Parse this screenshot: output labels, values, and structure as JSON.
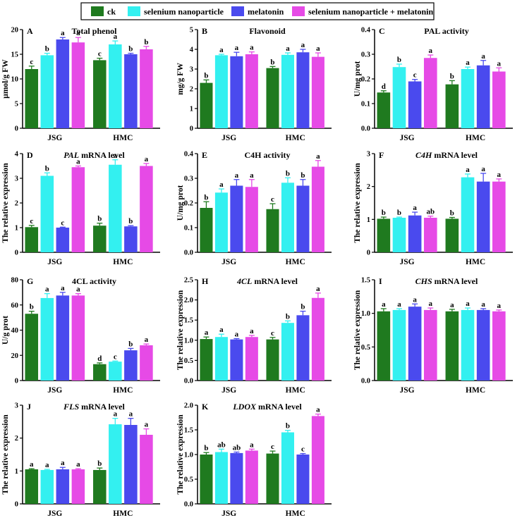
{
  "legend": {
    "items": [
      {
        "label": "ck",
        "color": "#1f7a1f"
      },
      {
        "label": "selenium nanoparticle",
        "color": "#33f0f0"
      },
      {
        "label": "melatonin",
        "color": "#4a4aee"
      },
      {
        "label": "selenium nanoparticle + melatonin",
        "color": "#e64ae6"
      }
    ]
  },
  "chart_data": [
    {
      "type": "bar",
      "letter": "A",
      "title": "Total phenol",
      "title_parts": [
        {
          "text": "Total phenol",
          "italic": false
        }
      ],
      "ylabel": "μmol/g FW",
      "ylim": [
        0,
        20
      ],
      "yticks": [
        0,
        5,
        10,
        15,
        20
      ],
      "categories": [
        "JSG",
        "HMC"
      ],
      "series": [
        {
          "name": "ck",
          "values": [
            12.0,
            13.8
          ],
          "errors": [
            0.6,
            0.4
          ],
          "letters": [
            "c",
            "c"
          ]
        },
        {
          "name": "selenium nanoparticle",
          "values": [
            14.8,
            17.0
          ],
          "errors": [
            0.4,
            0.7
          ],
          "letters": [
            "b",
            "a"
          ]
        },
        {
          "name": "melatonin",
          "values": [
            18.0,
            15.0
          ],
          "errors": [
            0.4,
            0.2
          ],
          "letters": [
            "a",
            "b"
          ]
        },
        {
          "name": "selenium nanoparticle + melatonin",
          "values": [
            17.4,
            16.0
          ],
          "errors": [
            1.0,
            0.6
          ],
          "letters": [
            "a",
            "b"
          ]
        }
      ]
    },
    {
      "type": "bar",
      "letter": "B",
      "title": "Flavonoid",
      "title_parts": [
        {
          "text": "Flavonoid",
          "italic": false
        }
      ],
      "ylabel": "mg/g FW",
      "ylim": [
        0,
        5
      ],
      "yticks": [
        0,
        1,
        2,
        3,
        4,
        5
      ],
      "categories": [
        "JSG",
        "HMC"
      ],
      "series": [
        {
          "name": "ck",
          "values": [
            2.3,
            3.05
          ],
          "errors": [
            0.15,
            0.08
          ],
          "letters": [
            "b",
            "b"
          ]
        },
        {
          "name": "selenium nanoparticle",
          "values": [
            3.7,
            3.72
          ],
          "errors": [
            0.05,
            0.1
          ],
          "letters": [
            "a",
            "a"
          ]
        },
        {
          "name": "melatonin",
          "values": [
            3.65,
            3.85
          ],
          "errors": [
            0.2,
            0.15
          ],
          "letters": [
            "a",
            "a"
          ]
        },
        {
          "name": "selenium nanoparticle + melatonin",
          "values": [
            3.75,
            3.62
          ],
          "errors": [
            0.12,
            0.2
          ],
          "letters": [
            "a",
            "a"
          ]
        }
      ]
    },
    {
      "type": "bar",
      "letter": "C",
      "title": "PAL activity",
      "title_parts": [
        {
          "text": "PAL activity",
          "italic": false
        }
      ],
      "ylabel": "U/mg prot",
      "ylim": [
        0,
        0.4
      ],
      "yticks": [
        0.0,
        0.1,
        0.2,
        0.3,
        0.4
      ],
      "categories": [
        "JSG",
        "HMC"
      ],
      "series": [
        {
          "name": "ck",
          "values": [
            0.145,
            0.178
          ],
          "errors": [
            0.007,
            0.015
          ],
          "letters": [
            "d",
            "b"
          ]
        },
        {
          "name": "selenium nanoparticle",
          "values": [
            0.248,
            0.24
          ],
          "errors": [
            0.012,
            0.008
          ],
          "letters": [
            "b",
            "a"
          ]
        },
        {
          "name": "melatonin",
          "values": [
            0.19,
            0.255
          ],
          "errors": [
            0.008,
            0.02
          ],
          "letters": [
            "c",
            "a"
          ]
        },
        {
          "name": "selenium nanoparticle + melatonin",
          "values": [
            0.285,
            0.23
          ],
          "errors": [
            0.012,
            0.015
          ],
          "letters": [
            "a",
            "a"
          ]
        }
      ]
    },
    {
      "type": "bar",
      "letter": "D",
      "title": "PAL mRNA level",
      "title_parts": [
        {
          "text": "PAL",
          "italic": true
        },
        {
          "text": " mRNA level",
          "italic": false
        }
      ],
      "ylabel": "The relative expression",
      "ylim": [
        0,
        4
      ],
      "yticks": [
        0,
        1,
        2,
        3,
        4
      ],
      "categories": [
        "JSG",
        "HMC"
      ],
      "series": [
        {
          "name": "ck",
          "values": [
            1.02,
            1.08
          ],
          "errors": [
            0.07,
            0.1
          ],
          "letters": [
            "c",
            "b"
          ]
        },
        {
          "name": "selenium nanoparticle",
          "values": [
            3.1,
            3.55
          ],
          "errors": [
            0.12,
            0.2
          ],
          "letters": [
            "b",
            "a"
          ]
        },
        {
          "name": "melatonin",
          "values": [
            1.0,
            1.05
          ],
          "errors": [
            0.02,
            0.03
          ],
          "letters": [
            "c",
            "b"
          ]
        },
        {
          "name": "selenium nanoparticle + melatonin",
          "values": [
            3.45,
            3.5
          ],
          "errors": [
            0.05,
            0.1
          ],
          "letters": [
            "a",
            "a"
          ]
        }
      ]
    },
    {
      "type": "bar",
      "letter": "E",
      "title": "C4H activity",
      "title_parts": [
        {
          "text": "C4H activity",
          "italic": false
        }
      ],
      "ylabel": "U/mg prot",
      "ylim": [
        0,
        0.4
      ],
      "yticks": [
        0.0,
        0.1,
        0.2,
        0.3,
        0.4
      ],
      "categories": [
        "JSG",
        "HMC"
      ],
      "series": [
        {
          "name": "ck",
          "values": [
            0.18,
            0.175
          ],
          "errors": [
            0.025,
            0.022
          ],
          "letters": [
            "b",
            "c"
          ]
        },
        {
          "name": "selenium nanoparticle",
          "values": [
            0.242,
            0.282
          ],
          "errors": [
            0.015,
            0.02
          ],
          "letters": [
            "a",
            "b"
          ]
        },
        {
          "name": "melatonin",
          "values": [
            0.27,
            0.27
          ],
          "errors": [
            0.025,
            0.025
          ],
          "letters": [
            "a",
            "b"
          ]
        },
        {
          "name": "selenium nanoparticle + melatonin",
          "values": [
            0.265,
            0.347
          ],
          "errors": [
            0.03,
            0.025
          ],
          "letters": [
            "a",
            "a"
          ]
        }
      ]
    },
    {
      "type": "bar",
      "letter": "F",
      "title": "C4H mRNA level",
      "title_parts": [
        {
          "text": "C4H",
          "italic": true
        },
        {
          "text": " mRNA level",
          "italic": false
        }
      ],
      "ylabel": "The relative expression",
      "ylim": [
        0,
        3
      ],
      "yticks": [
        0,
        1,
        2,
        3
      ],
      "categories": [
        "JSG",
        "HMC"
      ],
      "series": [
        {
          "name": "ck",
          "values": [
            1.02,
            1.02
          ],
          "errors": [
            0.05,
            0.04
          ],
          "letters": [
            "b",
            "b"
          ]
        },
        {
          "name": "selenium nanoparticle",
          "values": [
            1.05,
            2.28
          ],
          "errors": [
            0.02,
            0.1
          ],
          "letters": [
            "b",
            "a"
          ]
        },
        {
          "name": "melatonin",
          "values": [
            1.12,
            2.15
          ],
          "errors": [
            0.1,
            0.25
          ],
          "letters": [
            "a",
            "a"
          ]
        },
        {
          "name": "selenium nanoparticle + melatonin",
          "values": [
            1.05,
            2.15
          ],
          "errors": [
            0.05,
            0.08
          ],
          "letters": [
            "ab",
            "a"
          ]
        }
      ]
    },
    {
      "type": "bar",
      "letter": "G",
      "title": "4CL activity",
      "title_parts": [
        {
          "text": "4CL activity",
          "italic": false
        }
      ],
      "ylabel": "U/g prot",
      "ylim": [
        0,
        80
      ],
      "yticks": [
        0,
        20,
        40,
        60,
        80
      ],
      "categories": [
        "JSG",
        "HMC"
      ],
      "series": [
        {
          "name": "ck",
          "values": [
            53.0,
            13.0
          ],
          "errors": [
            2.0,
            1.0
          ],
          "letters": [
            "b",
            "d"
          ]
        },
        {
          "name": "selenium nanoparticle",
          "values": [
            65.5,
            15.0
          ],
          "errors": [
            3.5,
            0.5
          ],
          "letters": [
            "a",
            "c"
          ]
        },
        {
          "name": "melatonin",
          "values": [
            67.5,
            24.0
          ],
          "errors": [
            2.5,
            1.5
          ],
          "letters": [
            "a",
            "b"
          ]
        },
        {
          "name": "selenium nanoparticle + melatonin",
          "values": [
            67.5,
            28.0
          ],
          "errors": [
            1.5,
            1.0
          ],
          "letters": [
            "a",
            "a"
          ]
        }
      ]
    },
    {
      "type": "bar",
      "letter": "H",
      "title": "4CL mRNA level",
      "title_parts": [
        {
          "text": "4CL",
          "italic": true
        },
        {
          "text": " mRNA level",
          "italic": false
        }
      ],
      "ylabel": "The relative expression",
      "ylim": [
        0,
        2.5
      ],
      "yticks": [
        0.0,
        0.5,
        1.0,
        1.5,
        2.0,
        2.5
      ],
      "categories": [
        "JSG",
        "HMC"
      ],
      "series": [
        {
          "name": "ck",
          "values": [
            1.03,
            1.02
          ],
          "errors": [
            0.05,
            0.05
          ],
          "letters": [
            "a",
            "c"
          ]
        },
        {
          "name": "selenium nanoparticle",
          "values": [
            1.08,
            1.43
          ],
          "errors": [
            0.07,
            0.05
          ],
          "letters": [
            "a",
            "b"
          ]
        },
        {
          "name": "melatonin",
          "values": [
            1.02,
            1.62
          ],
          "errors": [
            0.02,
            0.1
          ],
          "letters": [
            "a",
            "b"
          ]
        },
        {
          "name": "selenium nanoparticle + melatonin",
          "values": [
            1.08,
            2.05
          ],
          "errors": [
            0.04,
            0.12
          ],
          "letters": [
            "a",
            "a"
          ]
        }
      ]
    },
    {
      "type": "bar",
      "letter": "I",
      "title": "CHS mRNA level",
      "title_parts": [
        {
          "text": "CHS",
          "italic": true
        },
        {
          "text": " mRNA level",
          "italic": false
        }
      ],
      "ylabel": "The relative expression",
      "ylim": [
        0,
        1.5
      ],
      "yticks": [
        0.0,
        0.5,
        1.0,
        1.5
      ],
      "categories": [
        "JSG",
        "HMC"
      ],
      "series": [
        {
          "name": "ck",
          "values": [
            1.03,
            1.03
          ],
          "errors": [
            0.04,
            0.03
          ],
          "letters": [
            "a",
            "a"
          ]
        },
        {
          "name": "selenium nanoparticle",
          "values": [
            1.05,
            1.05
          ],
          "errors": [
            0.02,
            0.03
          ],
          "letters": [
            "a",
            "a"
          ]
        },
        {
          "name": "melatonin",
          "values": [
            1.1,
            1.05
          ],
          "errors": [
            0.04,
            0.02
          ],
          "letters": [
            "a",
            "a"
          ]
        },
        {
          "name": "selenium nanoparticle + melatonin",
          "values": [
            1.05,
            1.03
          ],
          "errors": [
            0.03,
            0.02
          ],
          "letters": [
            "a",
            "a"
          ]
        }
      ]
    },
    {
      "type": "bar",
      "letter": "J",
      "title": "FLS mRNA level",
      "title_parts": [
        {
          "text": "FLS",
          "italic": true
        },
        {
          "text": " mRNA level",
          "italic": false
        }
      ],
      "ylabel": "The relative expression",
      "ylim": [
        0,
        3
      ],
      "yticks": [
        0,
        1,
        2,
        3
      ],
      "categories": [
        "JSG",
        "HMC"
      ],
      "series": [
        {
          "name": "ck",
          "values": [
            1.05,
            1.03
          ],
          "errors": [
            0.02,
            0.06
          ],
          "letters": [
            "a",
            "b"
          ]
        },
        {
          "name": "selenium nanoparticle",
          "values": [
            1.03,
            2.42
          ],
          "errors": [
            0.02,
            0.18
          ],
          "letters": [
            "a",
            "a"
          ]
        },
        {
          "name": "melatonin",
          "values": [
            1.05,
            2.4
          ],
          "errors": [
            0.06,
            0.2
          ],
          "letters": [
            "a",
            "a"
          ]
        },
        {
          "name": "selenium nanoparticle + melatonin",
          "values": [
            1.05,
            2.1
          ],
          "errors": [
            0.02,
            0.18
          ],
          "letters": [
            "a",
            "a"
          ]
        }
      ]
    },
    {
      "type": "bar",
      "letter": "K",
      "title": "LDOX mRNA level",
      "title_parts": [
        {
          "text": "LDOX",
          "italic": true
        },
        {
          "text": " mRNA level",
          "italic": false
        }
      ],
      "ylabel": "The relative expression",
      "ylim": [
        0,
        2.0
      ],
      "yticks": [
        0.0,
        0.5,
        1.0,
        1.5,
        2.0
      ],
      "categories": [
        "JSG",
        "HMC"
      ],
      "series": [
        {
          "name": "ck",
          "values": [
            1.0,
            1.02
          ],
          "errors": [
            0.04,
            0.05
          ],
          "letters": [
            "b",
            "c"
          ]
        },
        {
          "name": "selenium nanoparticle",
          "values": [
            1.05,
            1.45
          ],
          "errors": [
            0.06,
            0.04
          ],
          "letters": [
            "ab",
            "b"
          ]
        },
        {
          "name": "melatonin",
          "values": [
            1.03,
            1.0
          ],
          "errors": [
            0.02,
            0.02
          ],
          "letters": [
            "ab",
            "c"
          ]
        },
        {
          "name": "selenium nanoparticle + melatonin",
          "values": [
            1.08,
            1.78
          ],
          "errors": [
            0.03,
            0.04
          ],
          "letters": [
            "a",
            "a"
          ]
        }
      ]
    }
  ]
}
